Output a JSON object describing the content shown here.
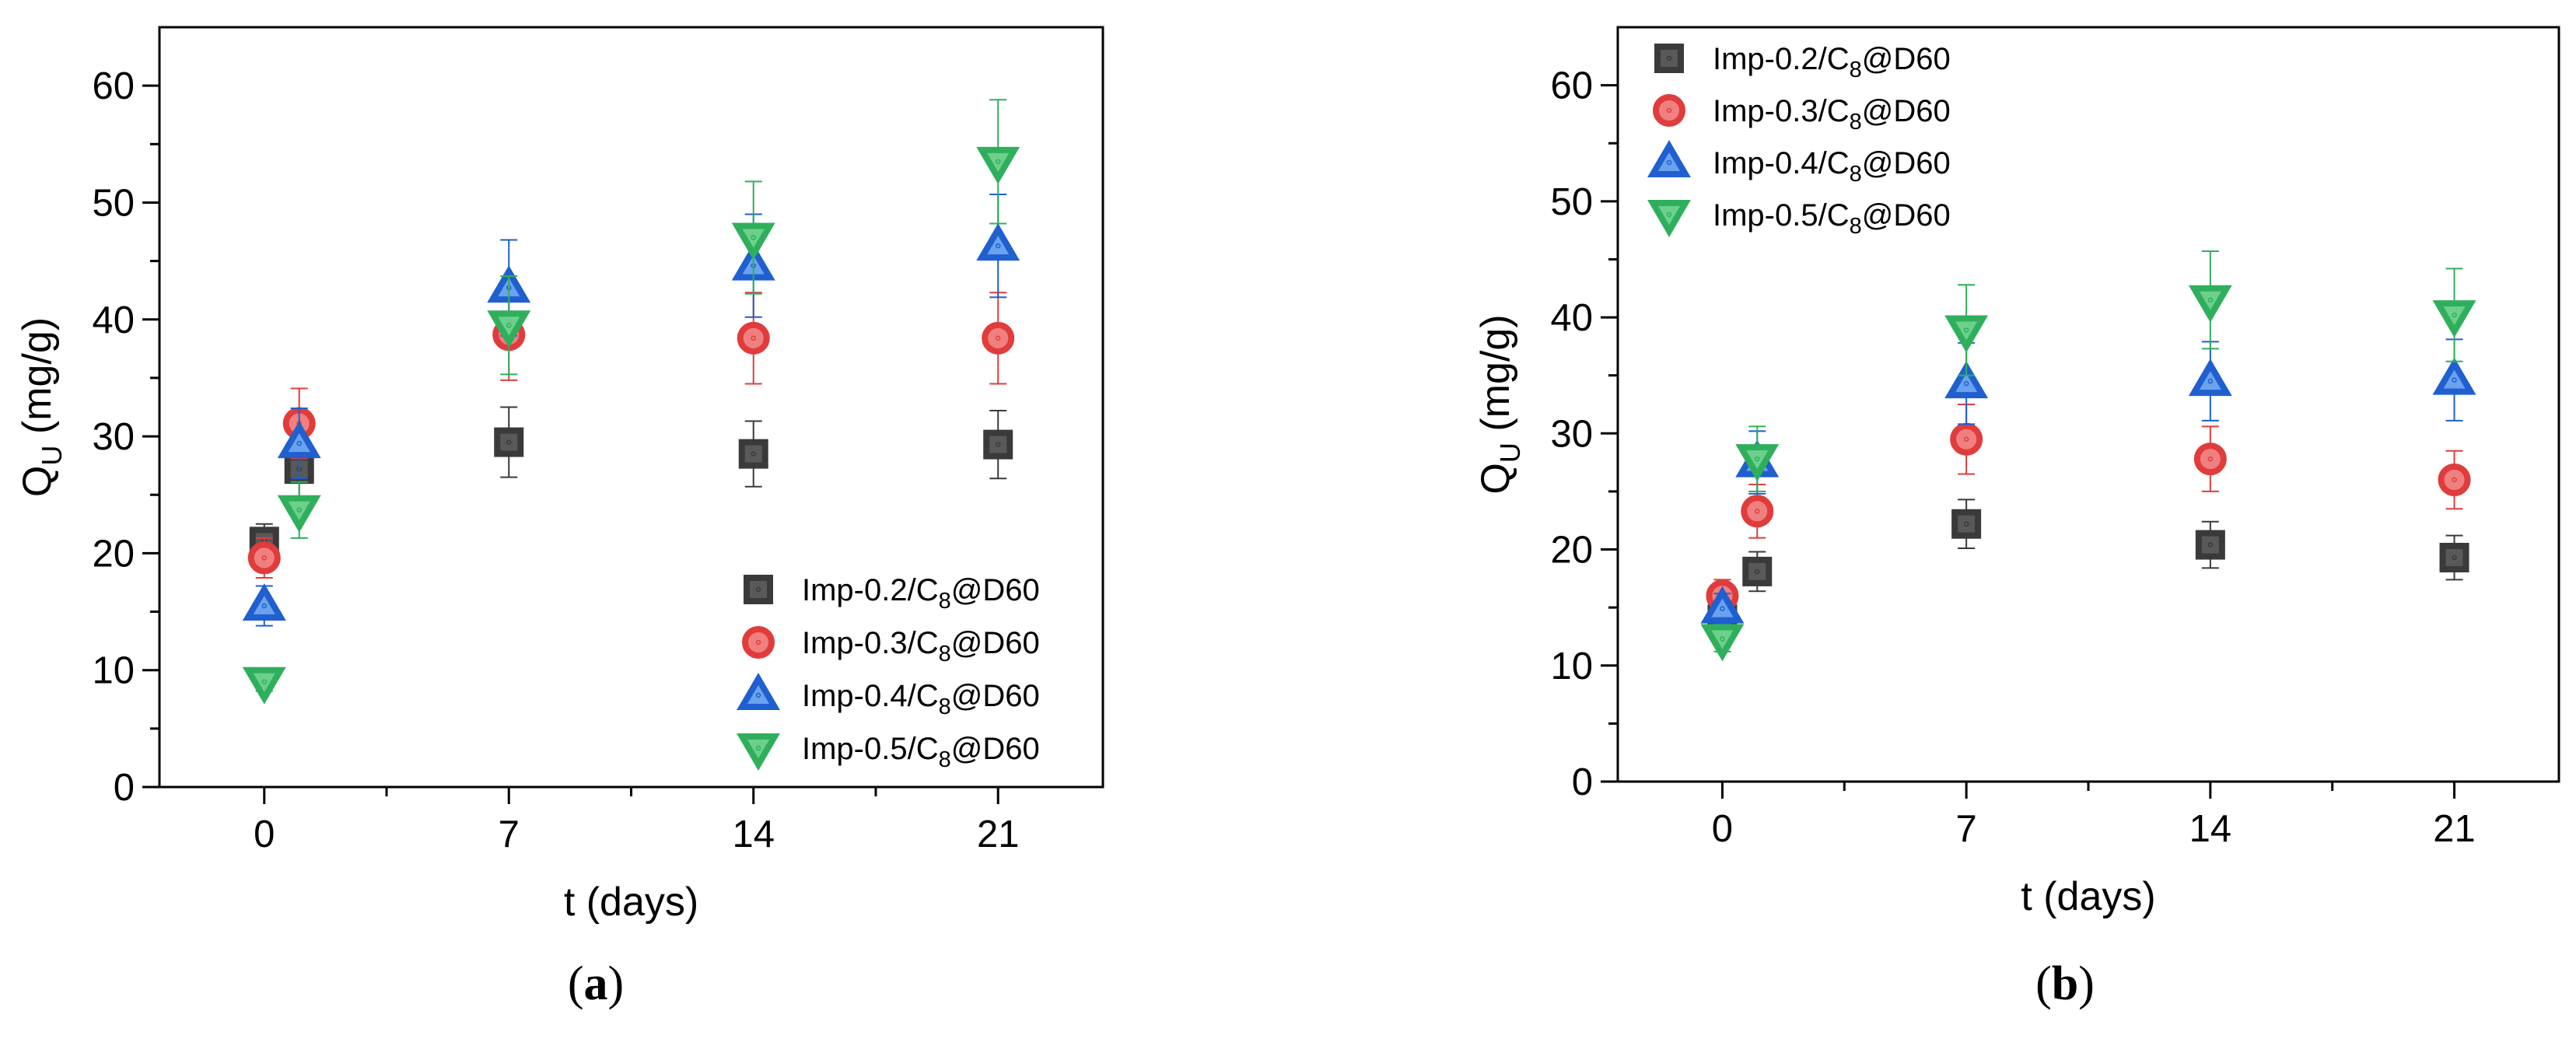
{
  "chart_data": [
    {
      "type": "scatter",
      "panel_label": "(a)",
      "panel_letter": "a",
      "xlabel": "t (days)",
      "ylabel_main": "Q",
      "ylabel_sub": "U",
      "ylabel_unit": " (mg/g)",
      "xlim": [
        -3,
        24
      ],
      "ylim": [
        0,
        65
      ],
      "xticks": [
        0,
        7,
        14,
        21
      ],
      "xtick_labels": [
        "0",
        "7",
        "14",
        "21"
      ],
      "xminor": [
        3.5,
        10.5,
        17.5
      ],
      "yticks": [
        0,
        10,
        20,
        30,
        40,
        50,
        60
      ],
      "ytick_labels": [
        "0",
        "10",
        "20",
        "30",
        "40",
        "50",
        "60"
      ],
      "legend_position": "bottom-right",
      "series": [
        {
          "name": "Imp-0.2/C8@D60",
          "label_prefix": "Imp-0.2/C",
          "label_sub": "8",
          "label_suffix": "@D60",
          "marker": "square",
          "color": "#595959",
          "edge": "#3a3a3a",
          "x": [
            0,
            1,
            7,
            14,
            21
          ],
          "y": [
            21.0,
            27.2,
            29.5,
            28.5,
            29.3
          ],
          "err": [
            1.5,
            2.4,
            3.0,
            2.8,
            2.9
          ]
        },
        {
          "name": "Imp-0.3/C8@D60",
          "label_prefix": "Imp-0.3/C",
          "label_sub": "8",
          "label_suffix": "@D60",
          "marker": "circle",
          "color": "#f08080",
          "edge": "#e03c3c",
          "x": [
            0,
            1,
            7,
            14,
            21
          ],
          "y": [
            19.6,
            31.1,
            38.7,
            38.4,
            38.4
          ],
          "err": [
            1.7,
            3.0,
            3.9,
            3.9,
            3.9
          ]
        },
        {
          "name": "Imp-0.4/C8@D60",
          "label_prefix": "Imp-0.4/C",
          "label_sub": "8",
          "label_suffix": "@D60",
          "marker": "triangle-up",
          "color": "#6aa2ee",
          "edge": "#1f5fd0",
          "x": [
            0,
            1,
            7,
            14,
            21
          ],
          "y": [
            15.5,
            29.4,
            42.7,
            44.6,
            46.3
          ],
          "err": [
            1.7,
            3.0,
            4.1,
            4.4,
            4.4
          ]
        },
        {
          "name": "Imp-0.5/C8@D60",
          "label_prefix": "Imp-0.5/C",
          "label_sub": "8",
          "label_suffix": "@D60",
          "marker": "triangle-down",
          "color": "#6cd08c",
          "edge": "#2faf5c",
          "x": [
            0,
            1,
            7,
            14,
            21
          ],
          "y": [
            9.0,
            23.7,
            39.5,
            47.0,
            53.5
          ],
          "err": [
            0.8,
            2.4,
            4.2,
            4.8,
            5.3
          ]
        }
      ]
    },
    {
      "type": "scatter",
      "panel_label": "(b)",
      "panel_letter": "b",
      "xlabel": "t (days)",
      "ylabel_main": "Q",
      "ylabel_sub": "U",
      "ylabel_unit": " (mg/g)",
      "xlim": [
        -3,
        24
      ],
      "ylim": [
        0,
        65
      ],
      "xticks": [
        0,
        7,
        14,
        21
      ],
      "xtick_labels": [
        "0",
        "7",
        "14",
        "21"
      ],
      "xminor": [
        3.5,
        10.5,
        17.5
      ],
      "yticks": [
        0,
        10,
        20,
        30,
        40,
        50,
        60
      ],
      "ytick_labels": [
        "0",
        "10",
        "20",
        "30",
        "40",
        "50",
        "60"
      ],
      "legend_position": "top-left",
      "series": [
        {
          "name": "Imp-0.2/C8@D60",
          "label_prefix": "Imp-0.2/C",
          "label_sub": "8",
          "label_suffix": "@D60",
          "marker": "square",
          "color": "#595959",
          "edge": "#3a3a3a",
          "x": [
            0,
            1,
            7,
            14,
            21
          ],
          "y": [
            14.0,
            18.1,
            22.2,
            20.4,
            19.3
          ],
          "err": [
            1.2,
            1.7,
            2.1,
            2.0,
            1.9
          ]
        },
        {
          "name": "Imp-0.3/C8@D60",
          "label_prefix": "Imp-0.3/C",
          "label_sub": "8",
          "label_suffix": "@D60",
          "marker": "circle",
          "color": "#f08080",
          "edge": "#e03c3c",
          "x": [
            0,
            1,
            7,
            14,
            21
          ],
          "y": [
            16.0,
            23.3,
            29.5,
            27.8,
            26.0
          ],
          "err": [
            1.4,
            2.3,
            3.0,
            2.8,
            2.5
          ]
        },
        {
          "name": "Imp-0.4/C8@D60",
          "label_prefix": "Imp-0.4/C",
          "label_sub": "8",
          "label_suffix": "@D60",
          "marker": "triangle-up",
          "color": "#6aa2ee",
          "edge": "#1f5fd0",
          "x": [
            0,
            1,
            7,
            14,
            21
          ],
          "y": [
            14.9,
            27.5,
            34.3,
            34.5,
            34.6
          ],
          "err": [
            1.3,
            2.7,
            3.5,
            3.4,
            3.5
          ]
        },
        {
          "name": "Imp-0.5/C8@D60",
          "label_prefix": "Imp-0.5/C",
          "label_sub": "8",
          "label_suffix": "@D60",
          "marker": "triangle-down",
          "color": "#6cd08c",
          "edge": "#2faf5c",
          "x": [
            0,
            1,
            7,
            14,
            21
          ],
          "y": [
            12.3,
            27.8,
            38.9,
            41.5,
            40.2
          ],
          "err": [
            1.1,
            2.8,
            3.9,
            4.2,
            4.0
          ]
        }
      ]
    }
  ]
}
